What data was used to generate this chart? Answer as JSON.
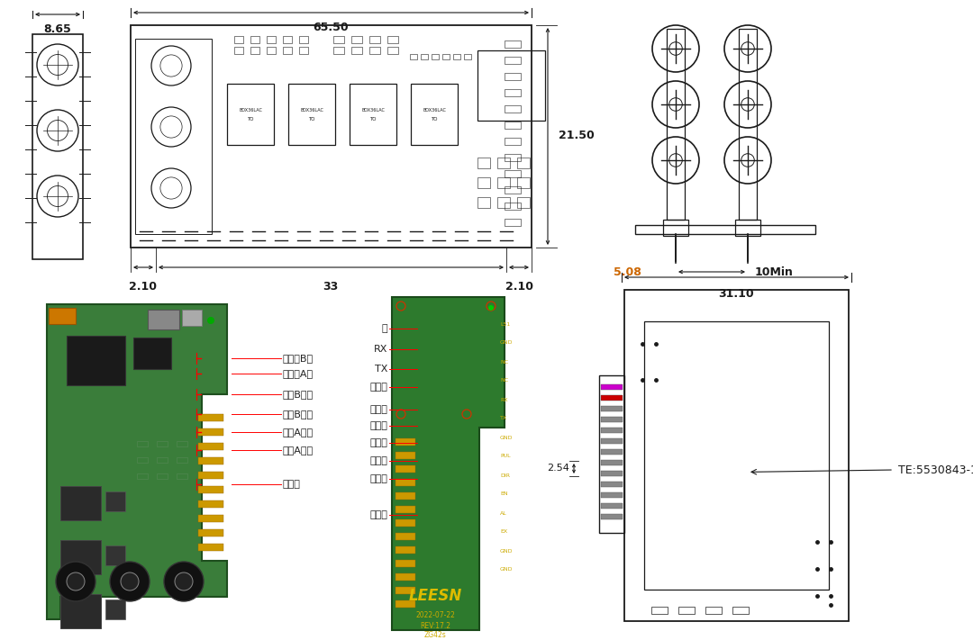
{
  "bg_color": "#ffffff",
  "line_color": "#1a1a1a",
  "top_view_dims": {
    "width_label": "65.50",
    "height_label": "21.50",
    "left_label": "2.10",
    "mid_label": "33",
    "right_label": "2.10",
    "side_label": "8.65"
  },
  "connector_dims": {
    "pitch_label": "5.08",
    "min_label": "10Min"
  },
  "side_view_dims": {
    "width_label": "31.10",
    "pitch_label": "2.54",
    "part_label": "TE:5530843-1"
  },
  "left_labels": [
    "编码器B相",
    "编码器A相",
    "电机B相正",
    "电机B相负",
    "电机A相正",
    "电机A相负",
    "电源正"
  ],
  "right_labels": [
    "空",
    "RX",
    "TX",
    "信号地",
    "脉冲正",
    "方向正",
    "使能正",
    "警报正",
    "到位正",
    "电源地"
  ],
  "leesn_text": "LEESN",
  "date_text": "2022-07-22",
  "rev_text": "REV:17.2",
  "model_text": "ZG42s"
}
